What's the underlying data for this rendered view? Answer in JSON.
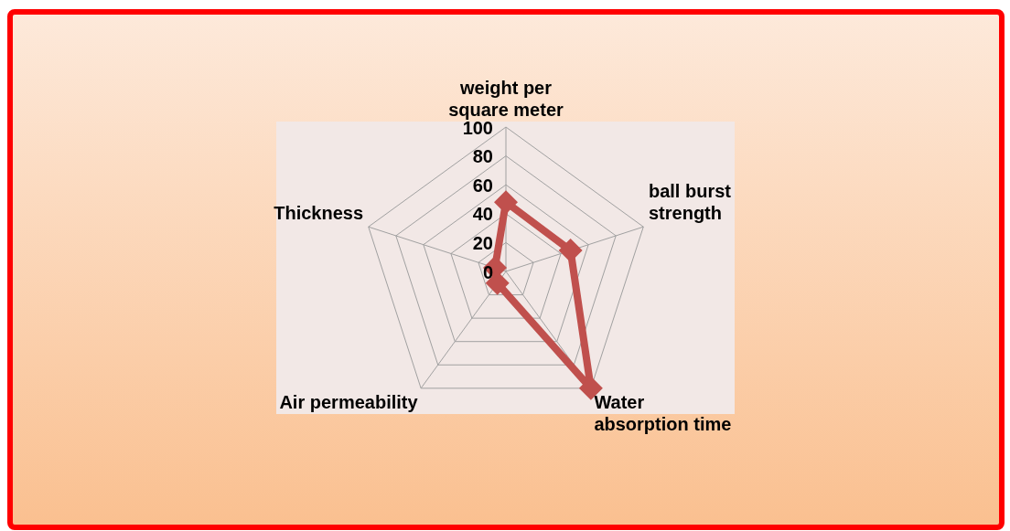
{
  "chart_data": {
    "type": "radar",
    "categories": [
      "weight per square meter",
      "ball burst strength",
      "Water absorption time",
      "Air permeability",
      "Thickness"
    ],
    "series": [
      {
        "color": "#c0504d",
        "values": [
          48,
          47,
          100,
          10,
          8
        ]
      }
    ],
    "ylim": [
      0,
      100
    ],
    "yticks": [
      0,
      20,
      40,
      60,
      80,
      100
    ],
    "grid": true,
    "legend": false,
    "marker": "diamond"
  }
}
